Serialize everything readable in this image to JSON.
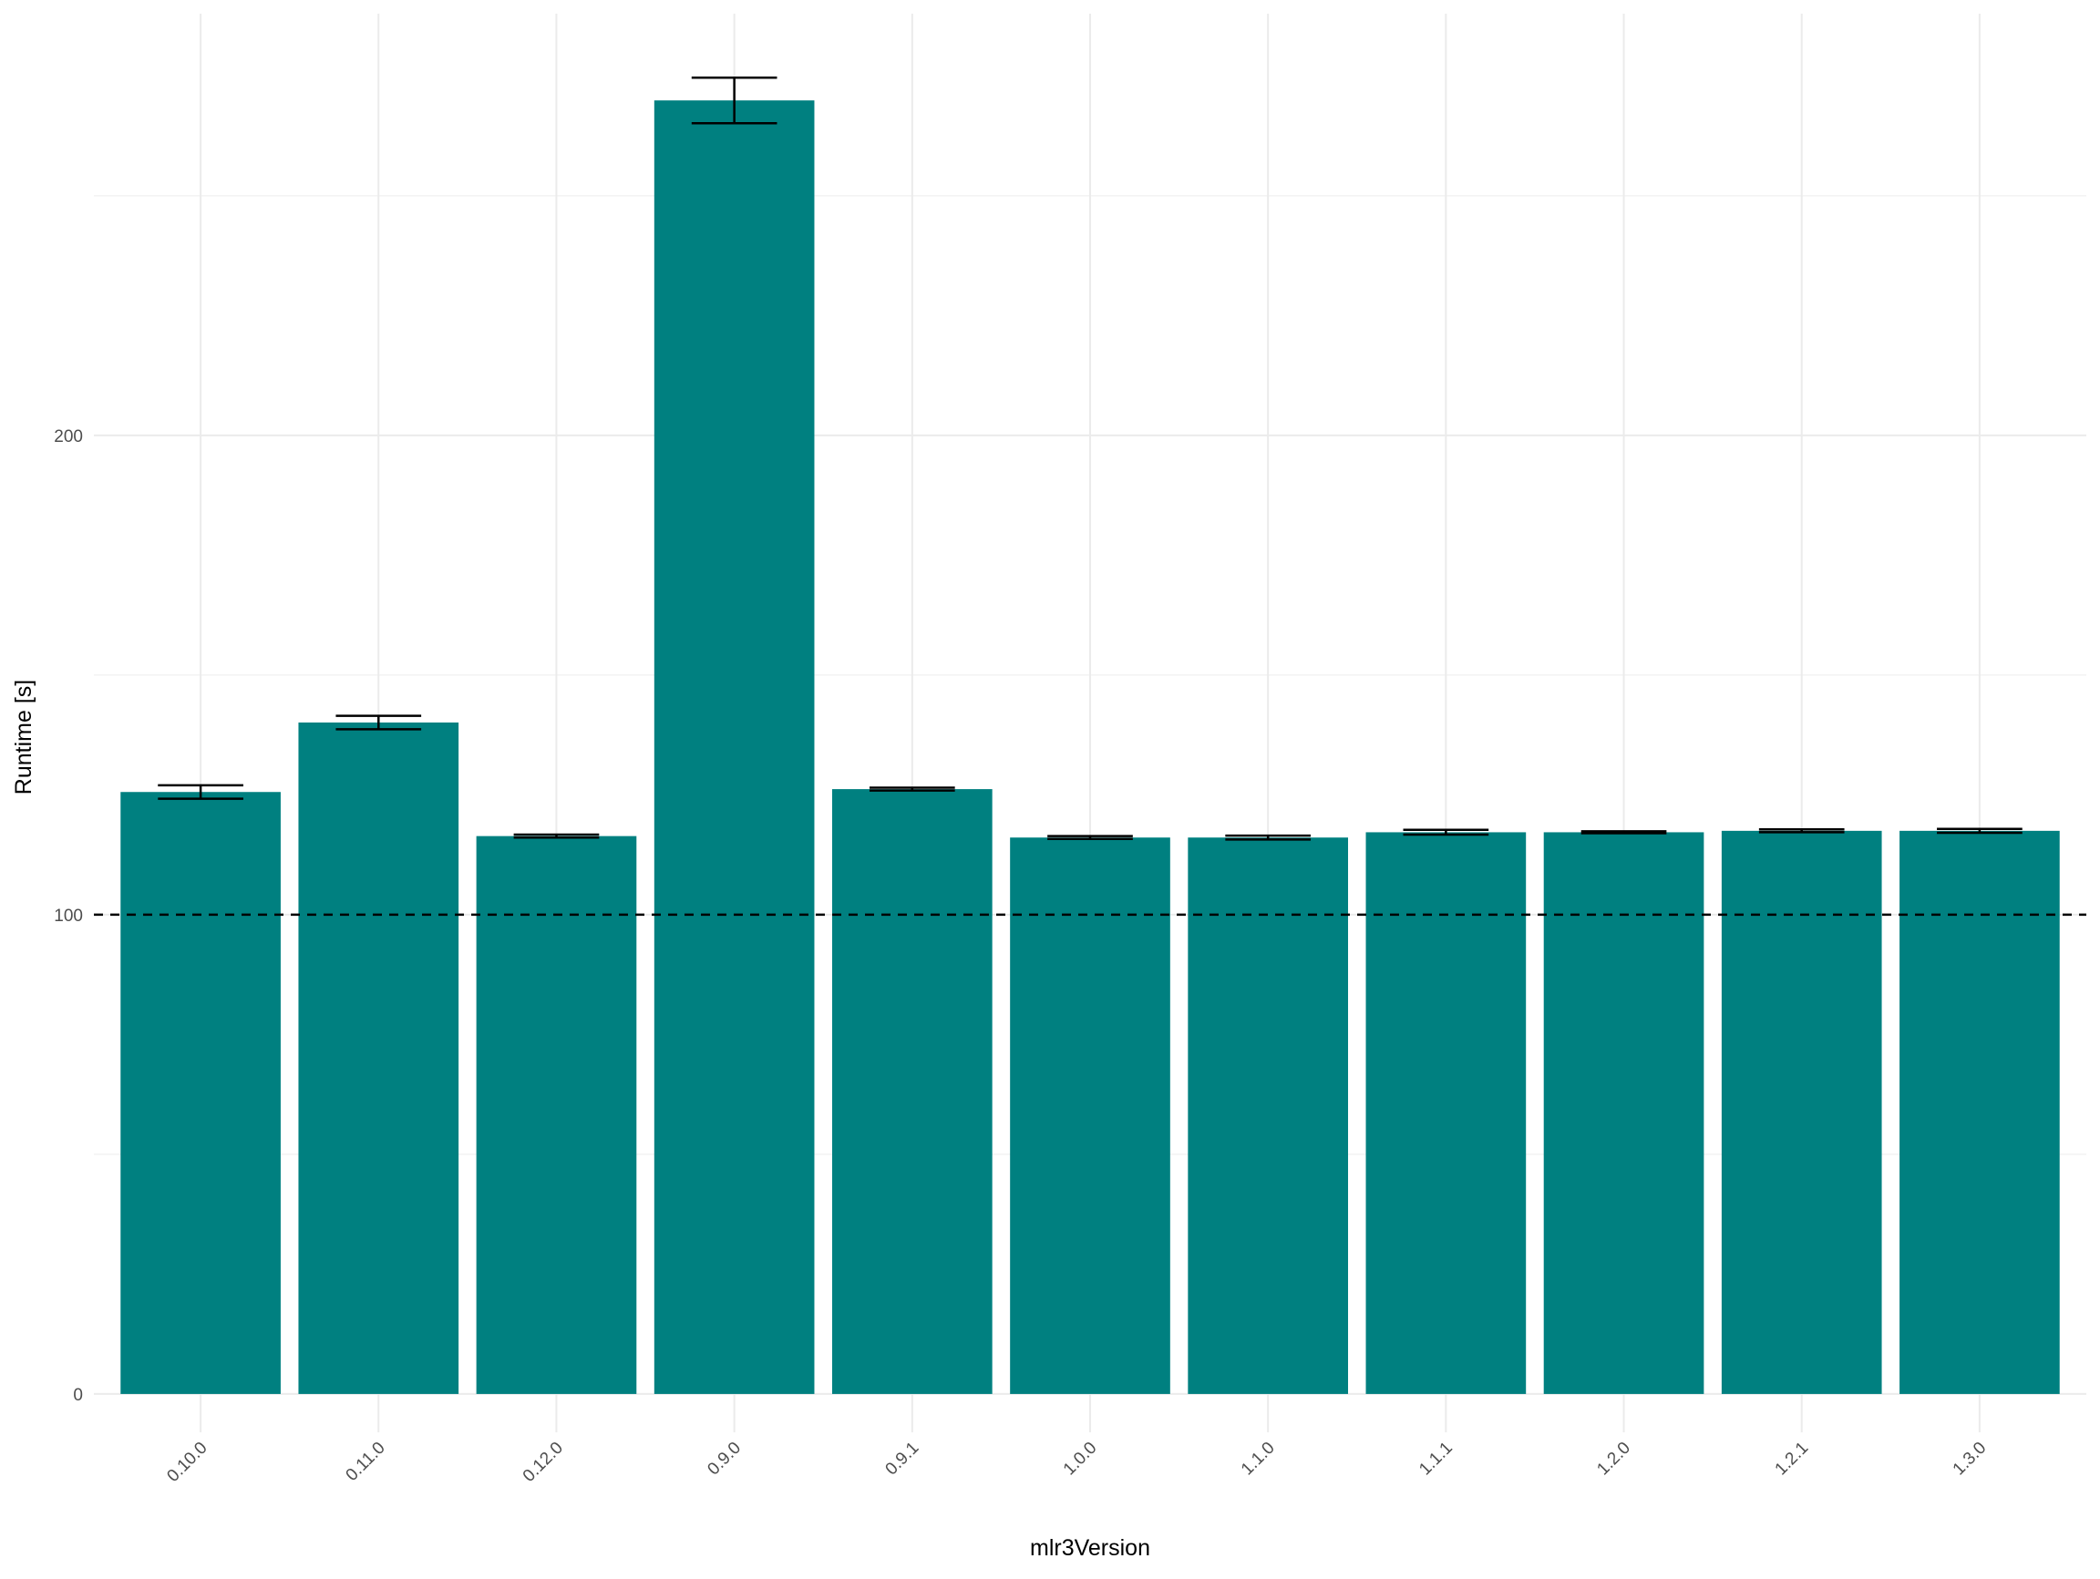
{
  "chart_data": {
    "type": "bar",
    "x_label": "mlr3Version",
    "y_label": "Runtime [s]",
    "categories": [
      "0.10.0",
      "0.11.0",
      "0.12.0",
      "0.9.0",
      "0.9.1",
      "1.0.0",
      "1.1.0",
      "1.1.1",
      "1.2.0",
      "1.2.1",
      "1.3.0"
    ],
    "values": [
      125.6,
      140.1,
      116.4,
      269.9,
      126.2,
      116.1,
      116.1,
      117.2,
      117.2,
      117.5,
      117.5
    ],
    "errors": [
      1.4,
      1.4,
      0.3,
      4.75,
      0.3,
      0.3,
      0.4,
      0.5,
      0.2,
      0.3,
      0.4
    ],
    "color": "#008080",
    "ylim": [
      -8,
      288
    ],
    "yticks": [
      0,
      100,
      200
    ],
    "minor_yticks": [
      50,
      150,
      250
    ],
    "hline": 100,
    "grid": true
  }
}
